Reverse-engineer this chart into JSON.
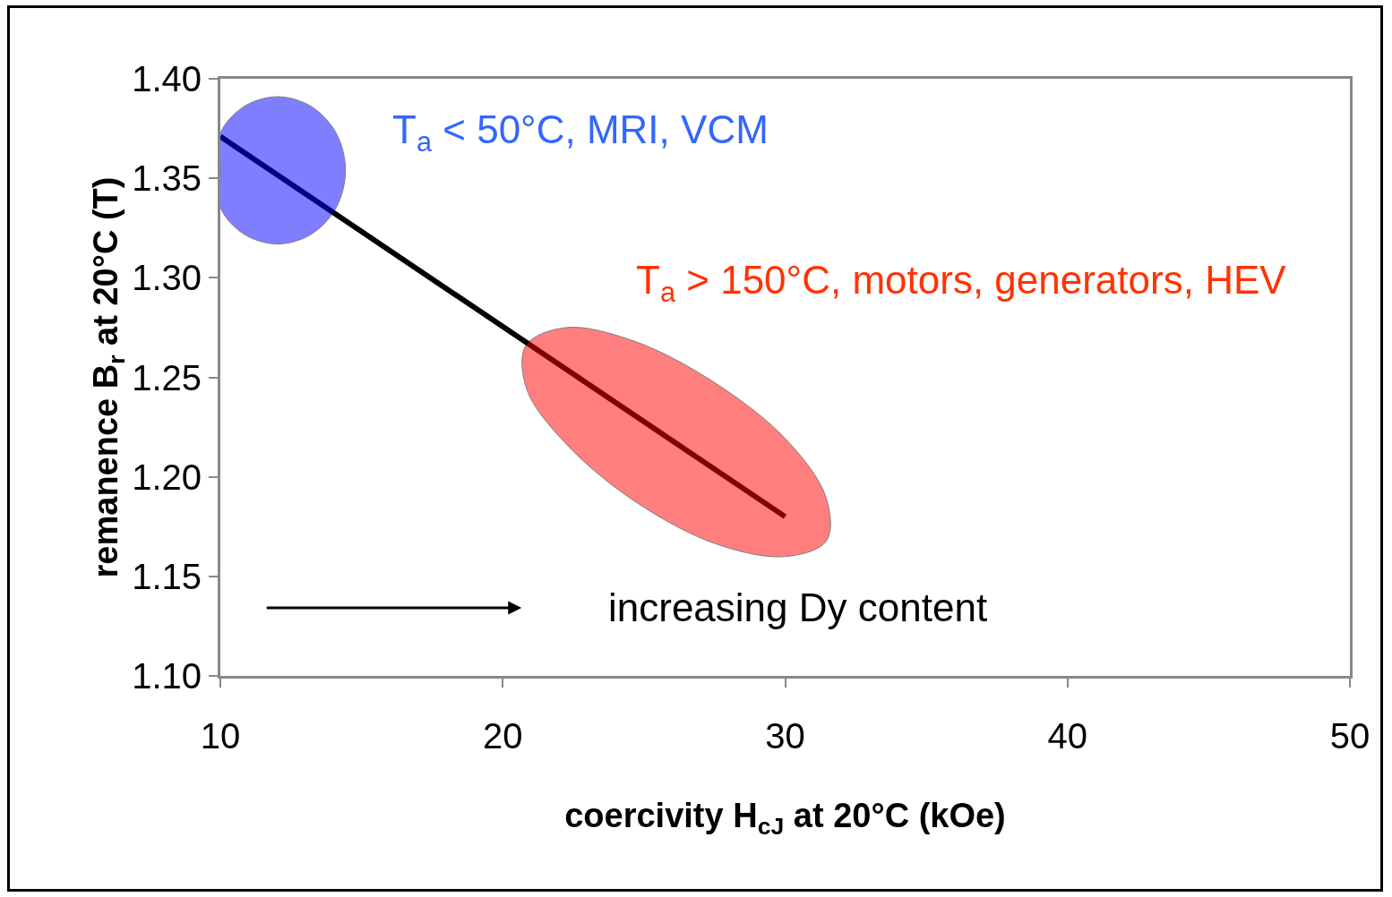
{
  "chart_data": {
    "type": "line",
    "xlabel": "coercivity H$_{cJ}$ at 20°C (kOe)",
    "ylabel": "remanence B$_{r}$ at 20°C (T)",
    "xlim": [
      10,
      50
    ],
    "xticks": [
      10,
      20,
      30,
      40,
      50
    ],
    "ylim": [
      1.1,
      1.4
    ],
    "yticks": [
      {
        "value": 1.1,
        "label": "1.10"
      },
      {
        "value": 1.15,
        "label": "1.15"
      },
      {
        "value": 1.2,
        "label": "1.20"
      },
      {
        "value": 1.25,
        "label": "1.25"
      },
      {
        "value": 1.3,
        "label": "1.30"
      },
      {
        "value": 1.35,
        "label": "1.35"
      },
      {
        "value": 1.4,
        "label": "1.40"
      }
    ],
    "grid": false,
    "marker": "none",
    "line_style": "solid",
    "series": [
      {
        "color": "#000000",
        "x": [
          10,
          30
        ],
        "values": [
          1.371,
          1.18
        ]
      },
      {
        "type": "area",
        "color": "#0000ff",
        "x": [
          14.43,
          14.11,
          13.23,
          12.03,
          10.83,
          10,
          10,
          10,
          10.83,
          12.03,
          13.23,
          14.11
        ],
        "values": [
          1.354,
          1.3725,
          1.386,
          1.391,
          1.386,
          1.3725,
          1.354,
          1.3355,
          1.322,
          1.317,
          1.322,
          1.3355
        ]
      },
      {
        "type": "area",
        "color": "#ff0000",
        "x": [
          31.47,
          30.05,
          27.61,
          24.75,
          22.28,
          20.85,
          20.82,
          22.24,
          24.69,
          27.54,
          30.02,
          31.44
        ],
        "values": [
          1.168,
          1.16,
          1.166,
          1.187,
          1.216,
          1.244,
          1.266,
          1.275,
          1.268,
          1.247,
          1.219,
          1.19
        ]
      }
    ],
    "annotations": [
      "T$_{a}$ < 50°C, MRI, VCM",
      "T$_{a}$ > 150°C, motors, generators, HEV",
      "increasing Dy content"
    ]
  }
}
